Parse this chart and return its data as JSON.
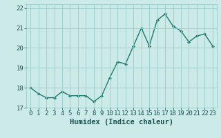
{
  "x": [
    0,
    1,
    2,
    3,
    4,
    5,
    6,
    7,
    8,
    9,
    10,
    11,
    12,
    13,
    14,
    15,
    16,
    17,
    18,
    19,
    20,
    21,
    22,
    23
  ],
  "y": [
    18.0,
    17.7,
    17.5,
    17.5,
    17.8,
    17.6,
    17.6,
    17.6,
    17.3,
    17.6,
    18.5,
    19.3,
    19.2,
    20.1,
    21.0,
    20.1,
    21.4,
    21.7,
    21.1,
    20.85,
    20.3,
    20.6,
    20.7,
    20.1
  ],
  "line_color": "#1a7a6e",
  "marker": "D",
  "marker_size": 2.0,
  "bg_color": "#cceae8",
  "grid_color": "#99ccca",
  "xlabel": "Humidex (Indice chaleur)",
  "xlim": [
    -0.5,
    23.5
  ],
  "ylim": [
    17.0,
    22.2
  ],
  "yticks": [
    17,
    18,
    19,
    20,
    21,
    22
  ],
  "xticks": [
    0,
    1,
    2,
    3,
    4,
    5,
    6,
    7,
    8,
    9,
    10,
    11,
    12,
    13,
    14,
    15,
    16,
    17,
    18,
    19,
    20,
    21,
    22,
    23
  ],
  "xlabel_fontsize": 7.5,
  "tick_fontsize": 6.5,
  "line_width": 1.0
}
